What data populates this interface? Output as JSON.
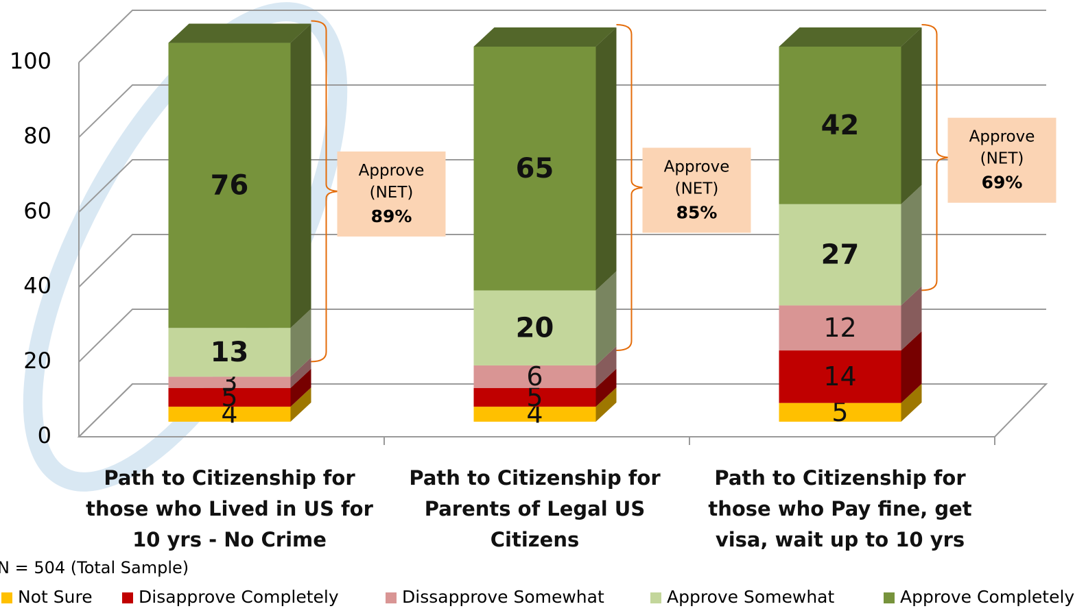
{
  "chart_data": {
    "type": "bar3d_stacked",
    "categories": [
      "Path to Citizenship for those who Lived in US for 10 yrs - No Crime",
      "Path to Citizenship for Parents of Legal US Citizens",
      "Path to Citizenship for those who Pay fine, get visa, wait up to 10 yrs"
    ],
    "series": [
      {
        "name": "Not Sure",
        "color": "#FFC000",
        "values": [
          4,
          4,
          5
        ]
      },
      {
        "name": "Disapprove Completely",
        "color": "#C00000",
        "values": [
          5,
          5,
          14
        ]
      },
      {
        "name": "Dissapprove Somewhat",
        "color": "#D99594",
        "values": [
          3,
          6,
          12
        ]
      },
      {
        "name": "Approve Somewhat",
        "color": "#C3D69B",
        "values": [
          13,
          20,
          27
        ]
      },
      {
        "name": "Approve Completely",
        "color": "#77933C",
        "values": [
          76,
          65,
          42
        ]
      }
    ],
    "ylim": [
      0,
      100
    ],
    "yticks": [
      0,
      20,
      40,
      60,
      80,
      100
    ],
    "grid": true,
    "annotations": [
      {
        "label": "Approve (NET)",
        "text": "89%"
      },
      {
        "label": "Approve (NET)",
        "text": "85%"
      },
      {
        "label": "Approve (NET)",
        "text": "69%"
      }
    ],
    "note": "N = 504 (Total Sample)"
  }
}
